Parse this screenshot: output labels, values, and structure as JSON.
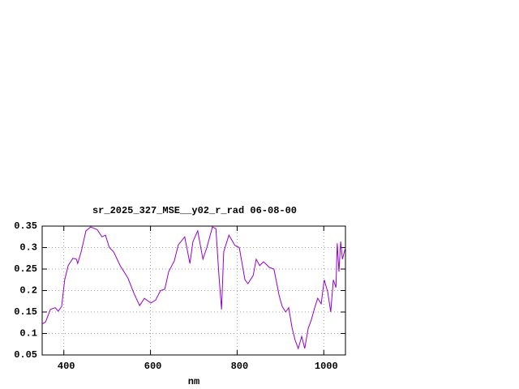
{
  "chart_data": {
    "type": "line",
    "title": "sr_2025_327_MSE__y02_r_rad 06-08-00",
    "x_label": "nm",
    "xlim": [
      350,
      1050
    ],
    "ylim": [
      0.05,
      0.35
    ],
    "xticks": [
      400,
      600,
      800,
      1000
    ],
    "yticks": [
      0.05,
      0.1,
      0.15,
      0.2,
      0.25,
      0.3,
      0.35
    ],
    "grid": true,
    "series": [
      {
        "color": "#9400d3",
        "x": [
          350,
          358,
          369,
          380,
          387,
          395,
          402,
          410,
          421,
          429,
          432,
          440,
          451,
          462,
          477,
          488,
          496,
          505,
          515,
          530,
          548,
          562,
          575,
          586,
          601,
          612,
          623,
          633,
          642,
          655,
          664,
          679,
          691,
          698,
          709,
          721,
          730,
          743,
          751,
          758,
          764,
          769,
          781,
          795,
          805,
          818,
          825,
          837,
          844,
          852,
          861,
          874,
          885,
          897,
          904,
          912,
          919,
          927,
          934,
          941,
          949,
          956,
          964,
          971,
          979,
          986,
          994,
          1001,
          1009,
          1016,
          1022,
          1028,
          1031,
          1035,
          1039,
          1043,
          1050
        ],
        "values": [
          0.122,
          0.127,
          0.156,
          0.16,
          0.152,
          0.163,
          0.225,
          0.258,
          0.275,
          0.273,
          0.263,
          0.29,
          0.339,
          0.348,
          0.342,
          0.325,
          0.329,
          0.3,
          0.29,
          0.258,
          0.229,
          0.193,
          0.165,
          0.182,
          0.171,
          0.178,
          0.2,
          0.203,
          0.244,
          0.269,
          0.306,
          0.325,
          0.263,
          0.314,
          0.339,
          0.273,
          0.3,
          0.348,
          0.344,
          0.235,
          0.156,
          0.29,
          0.329,
          0.305,
          0.3,
          0.225,
          0.216,
          0.235,
          0.273,
          0.258,
          0.267,
          0.254,
          0.25,
          0.188,
          0.163,
          0.15,
          0.16,
          0.112,
          0.084,
          0.065,
          0.093,
          0.065,
          0.112,
          0.131,
          0.16,
          0.182,
          0.169,
          0.225,
          0.197,
          0.15,
          0.225,
          0.207,
          0.31,
          0.244,
          0.314,
          0.273,
          0.3
        ]
      }
    ]
  }
}
